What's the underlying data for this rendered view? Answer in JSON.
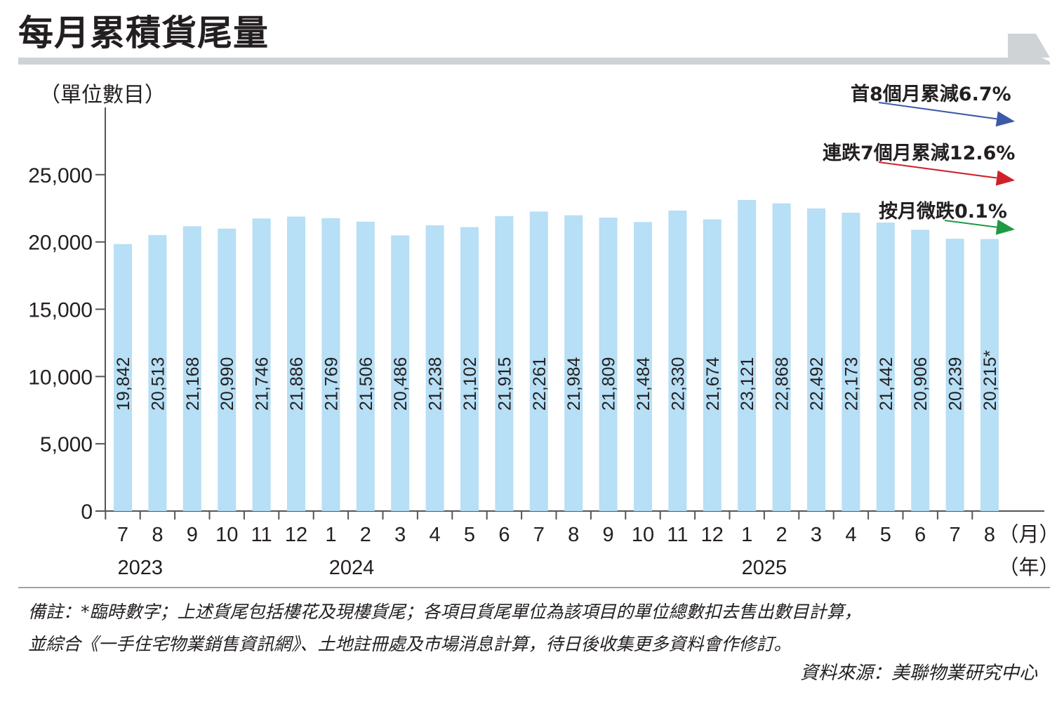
{
  "title": "每月累積貨尾量",
  "unit_label": "（單位數目）",
  "annotations": [
    {
      "text": "首8個月累減6.7%",
      "color": "#3d5aa8"
    },
    {
      "text": "連跌7個月累減12.6%",
      "color": "#d0202a"
    },
    {
      "text": "按月微跌0.1%",
      "color": "#1e9a44"
    }
  ],
  "month_unit": "（月）",
  "year_unit": "（年）",
  "year_labels": [
    "2023",
    "2024",
    "2025"
  ],
  "notes": [
    "備註：*臨時數字；上述貨尾包括樓花及現樓貨尾；各項目貨尾單位為該項目的單位總數扣去售出數目計算，",
    "並綜合《一手住宅物業銷售資訊網》、土地註冊處及市場消息計算，待日後收集更多資料會作修訂。"
  ],
  "source": "資料來源：美聯物業研究中心",
  "colors": {
    "bar": "#b7dff5",
    "axis": "#555555",
    "header_band": "#cfd3d6"
  },
  "chart_data": {
    "type": "bar",
    "categories": [
      "7",
      "8",
      "9",
      "10",
      "11",
      "12",
      "1",
      "2",
      "3",
      "4",
      "5",
      "6",
      "7",
      "8",
      "9",
      "10",
      "11",
      "12",
      "1",
      "2",
      "3",
      "4",
      "5",
      "6",
      "7",
      "8"
    ],
    "values": [
      19842,
      20513,
      21168,
      20990,
      21746,
      21886,
      21769,
      21506,
      20486,
      21238,
      21102,
      21915,
      22261,
      21984,
      21809,
      21484,
      22330,
      21674,
      23121,
      22868,
      22492,
      22173,
      21442,
      20906,
      20239,
      20215
    ],
    "data_labels": [
      "19,842",
      "20,513",
      "21,168",
      "20,990",
      "21,746",
      "21,886",
      "21,769",
      "21,506",
      "20,486",
      "21,238",
      "21,102",
      "21,915",
      "22,261",
      "21,984",
      "21,809",
      "21,484",
      "22,330",
      "21,674",
      "23,121",
      "22,868",
      "22,492",
      "22,173",
      "21,442",
      "20,906",
      "20,239",
      "20,215*"
    ],
    "yticks": [
      "0",
      "5,000",
      "10,000",
      "15,000",
      "20,000",
      "25,000"
    ],
    "ylim": [
      0,
      30000
    ],
    "grid": false
  }
}
